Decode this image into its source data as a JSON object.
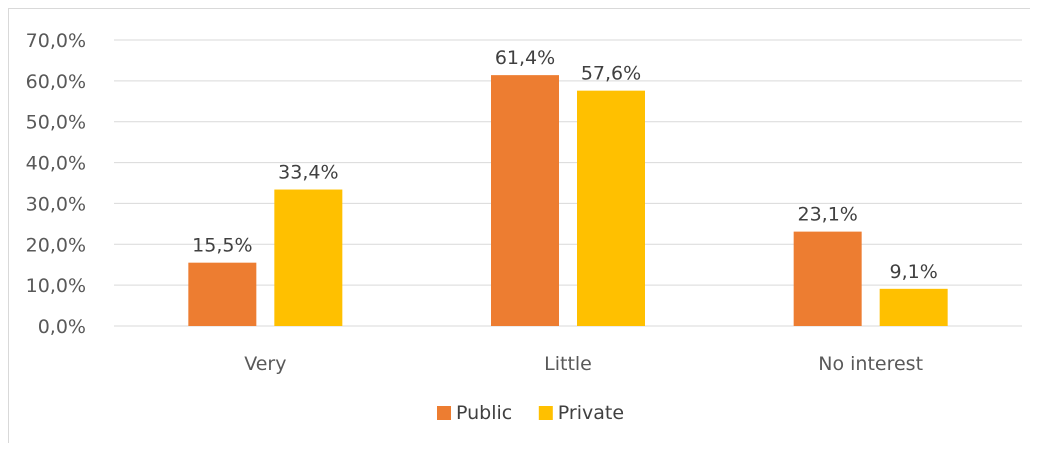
{
  "chart_data": {
    "type": "bar",
    "categories": [
      "Very",
      "Little",
      "No interest"
    ],
    "series": [
      {
        "name": "Public",
        "values": [
          15.5,
          61.4,
          23.1
        ],
        "labels": [
          "15,5%",
          "61,4%",
          "23,1%"
        ],
        "color": "#ED7D31"
      },
      {
        "name": "Private",
        "values": [
          33.4,
          57.6,
          9.1
        ],
        "labels": [
          "33,4%",
          "57,6%",
          "9,1%"
        ],
        "color": "#FFC000"
      }
    ],
    "ylim": [
      0,
      70
    ],
    "yticks": [
      0,
      10,
      20,
      30,
      40,
      50,
      60,
      70
    ],
    "ytick_labels": [
      "0,0%",
      "10,0%",
      "20,0%",
      "30,0%",
      "40,0%",
      "50,0%",
      "60,0%",
      "70,0%"
    ],
    "grid": true,
    "legend": "bottom"
  }
}
